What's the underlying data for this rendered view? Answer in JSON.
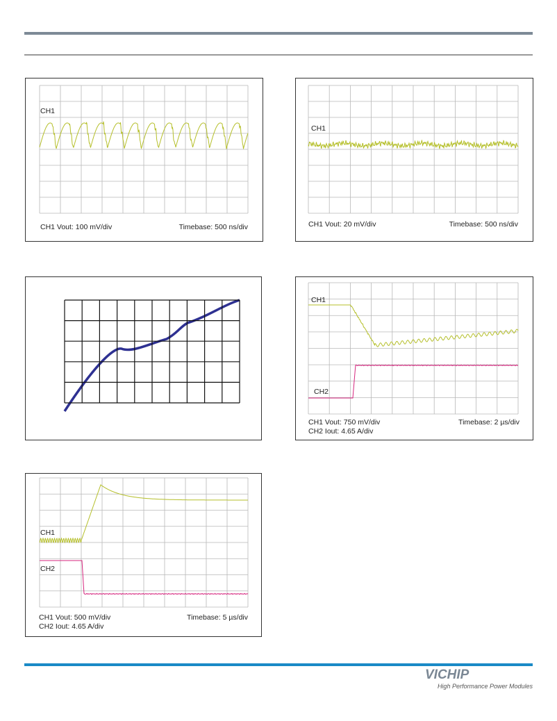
{
  "scopes": [
    {
      "channels": [
        "CH1"
      ],
      "captions": [
        "CH1 Vout: 100 mV/div"
      ],
      "timebase": "Timebase: 500 ns/div"
    },
    {
      "channels": [
        "CH1"
      ],
      "captions": [
        "CH1 Vout: 20 mV/div"
      ],
      "timebase": "Timebase: 500 ns/div"
    },
    {
      "channels": [
        "CH1",
        "CH2"
      ],
      "captions": [
        "CH1 Vout: 750 mV/div",
        "CH2 Iout: 4.65 A/div"
      ],
      "timebase": "Timebase: 2 µs/div"
    },
    {
      "channels": [
        "CH1",
        "CH2"
      ],
      "captions": [
        "CH1 Vout: 500 mV/div",
        "CH2 Iout: 4.65 A/div"
      ],
      "timebase": "Timebase: 5 µs/div"
    }
  ],
  "footer": {
    "brand": "VICHIP",
    "tagline": "High Performance Power Modules"
  }
}
